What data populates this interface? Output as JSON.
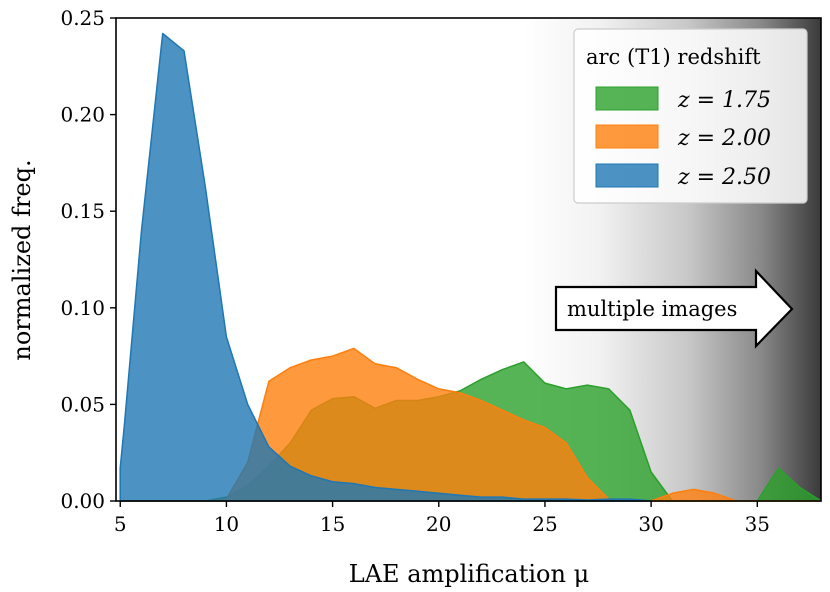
{
  "chart_data": {
    "type": "area",
    "xlabel": "LAE amplification μ",
    "ylabel": "normalized freq.",
    "xlim": [
      4.8,
      38.0
    ],
    "ylim": [
      0,
      0.25
    ],
    "xticks": [
      5,
      10,
      15,
      20,
      25,
      30,
      35
    ],
    "xtick_labels": [
      "5",
      "10",
      "15",
      "20",
      "25",
      "30",
      "35"
    ],
    "yticks": [
      0,
      0.05,
      0.1,
      0.15,
      0.2,
      0.25
    ],
    "ytick_labels": [
      "0.00",
      "0.05",
      "0.10",
      "0.15",
      "0.20",
      "0.25"
    ],
    "shaded_region": {
      "x_start": 24,
      "x_end": 38,
      "gradient": "white-to-dark-gray"
    },
    "annotation": {
      "text": "multiple images",
      "arrow_direction": "right"
    },
    "legend": {
      "title": "arc (T1) redshift",
      "location": "top-right"
    },
    "series": [
      {
        "name": "z = 1.75",
        "label": "z = 1.75",
        "color": "#2ca02c",
        "x": [
          5,
          6,
          7,
          8,
          9,
          10,
          11,
          12,
          13,
          14,
          15,
          16,
          17,
          17.5,
          18,
          19,
          20,
          21,
          22,
          23,
          24,
          25,
          26,
          27,
          28,
          29,
          30,
          31,
          32,
          33,
          34,
          35,
          36,
          37,
          38
        ],
        "values": [
          0,
          0,
          0,
          0,
          0,
          0.002,
          0.008,
          0.018,
          0.03,
          0.047,
          0.053,
          0.054,
          0.048,
          0.05,
          0.052,
          0.052,
          0.054,
          0.057,
          0.063,
          0.068,
          0.072,
          0.061,
          0.058,
          0.06,
          0.058,
          0.047,
          0.015,
          0,
          0,
          0,
          0,
          0,
          0.017,
          0.007,
          0
        ]
      },
      {
        "name": "z = 2.00",
        "label": "z = 2.00",
        "color": "#ff7f0e",
        "x": [
          5,
          6,
          7,
          8,
          9,
          10,
          11,
          12,
          13,
          14,
          15,
          16,
          17,
          18,
          19,
          20,
          21,
          22,
          23,
          24,
          25,
          26,
          27,
          28,
          29,
          30,
          31,
          32,
          33,
          34,
          35,
          36,
          37,
          38
        ],
        "values": [
          0,
          0,
          0,
          0,
          0,
          0.001,
          0.02,
          0.062,
          0.069,
          0.073,
          0.075,
          0.079,
          0.071,
          0.069,
          0.063,
          0.058,
          0.056,
          0.052,
          0.047,
          0.042,
          0.038,
          0.03,
          0.012,
          0.001,
          0,
          0,
          0.004,
          0.006,
          0.004,
          0,
          0,
          0,
          0,
          0
        ]
      },
      {
        "name": "z = 2.50",
        "label": "z = 2.50",
        "color": "#1f77b4",
        "x": [
          5,
          5.2,
          6,
          7,
          8,
          9,
          10,
          11,
          12,
          13,
          14,
          15,
          16,
          17,
          18,
          19,
          20,
          21,
          22,
          23,
          24,
          25,
          26,
          27,
          28,
          29,
          30
        ],
        "values": [
          0.017,
          0.04,
          0.14,
          0.242,
          0.233,
          0.163,
          0.085,
          0.05,
          0.028,
          0.018,
          0.013,
          0.01,
          0.009,
          0.007,
          0.006,
          0.005,
          0.004,
          0.003,
          0.002,
          0.002,
          0.001,
          0.001,
          0.001,
          0.0005,
          0.001,
          0.001,
          0
        ]
      }
    ]
  }
}
